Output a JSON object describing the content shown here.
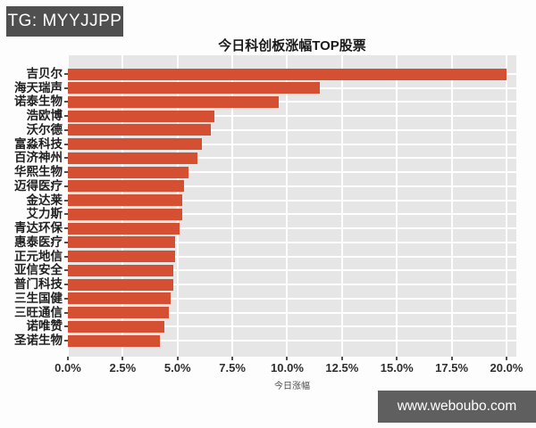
{
  "badge": {
    "text": "TG: MYYJJPP"
  },
  "watermark": {
    "text": "www.weboubo.com"
  },
  "chart_data": {
    "type": "bar",
    "orientation": "horizontal",
    "title": "今日科创板涨幅TOP股票",
    "xlabel": "今日涨幅",
    "ylabel": "",
    "categories": [
      "吉贝尔",
      "海天瑞声",
      "诺泰生物",
      "浩欧博",
      "沃尔德",
      "富淼科技",
      "百济神州",
      "华熙生物",
      "迈得医疗",
      "金达莱",
      "艾力斯",
      "青达环保",
      "惠泰医疗",
      "正元地信",
      "亚信安全",
      "普门科技",
      "三生国健",
      "三旺通信",
      "诺唯赞",
      "圣诺生物"
    ],
    "values": [
      20.0,
      11.5,
      9.6,
      6.7,
      6.5,
      6.1,
      5.9,
      5.5,
      5.3,
      5.2,
      5.2,
      5.1,
      4.9,
      4.9,
      4.8,
      4.8,
      4.7,
      4.6,
      4.4,
      4.2
    ],
    "unit": "%",
    "xlim": [
      0,
      20.45
    ],
    "xticks": [
      0,
      2.5,
      5,
      7.5,
      10,
      12.5,
      15,
      17.5,
      20
    ],
    "xtick_labels": [
      "0.0%",
      "2.5%",
      "5.0%",
      "7.5%",
      "10.0%",
      "12.5%",
      "15.0%",
      "17.5%",
      "20.0%"
    ],
    "grid": true,
    "legend": false,
    "colors": {
      "bar": "#d54f33",
      "plot_bg": "#e6e6e6",
      "grid": "#ffffff",
      "badge_bg": "#4f4f4f",
      "watermark_bg": "#5f5f5f"
    }
  }
}
